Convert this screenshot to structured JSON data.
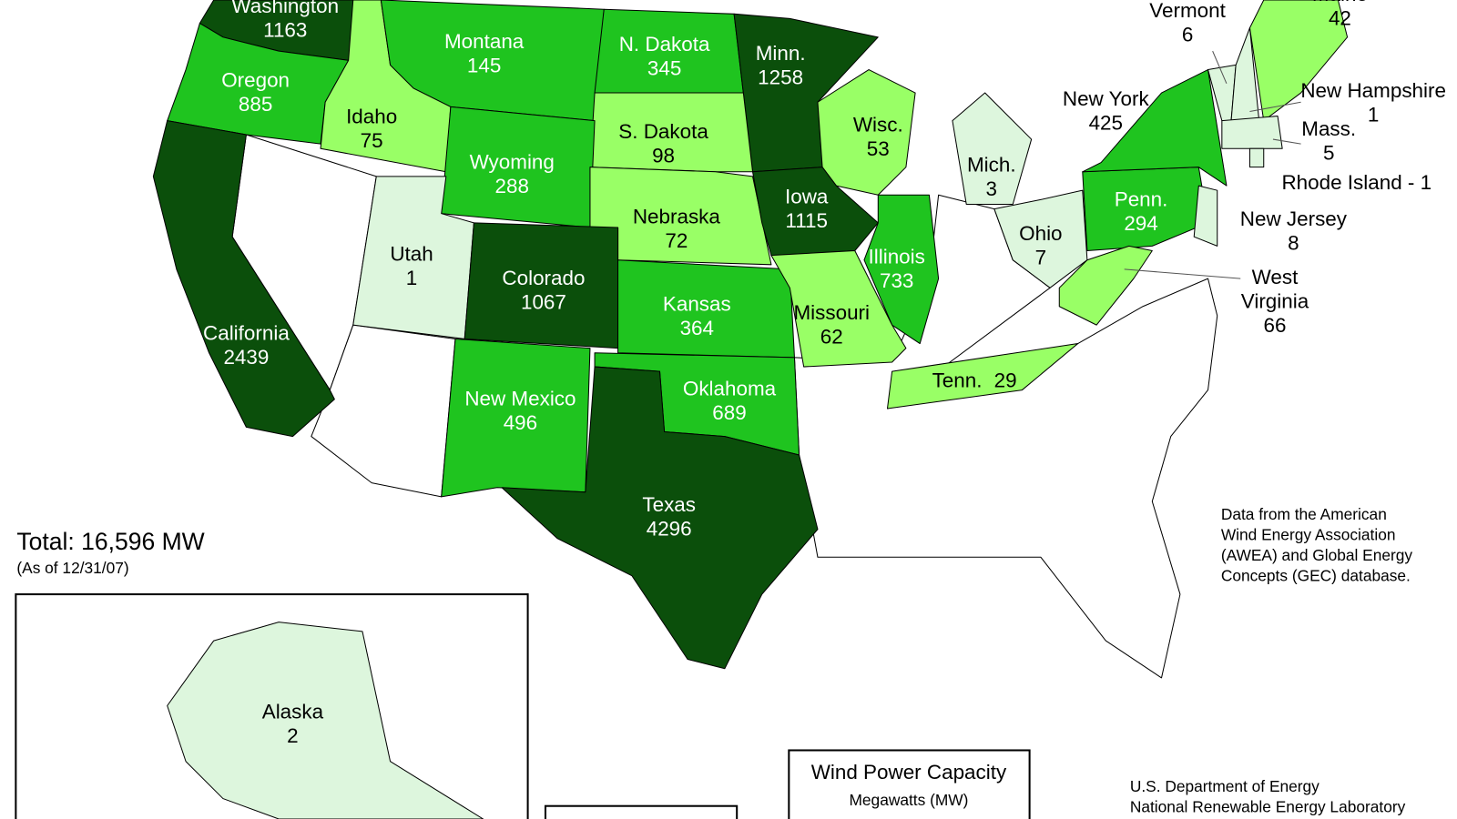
{
  "total": "Total:  16,596 MW",
  "as_of": "(As of 12/31/07)",
  "source": [
    "Data from the American",
    "Wind Energy Association",
    "(AWEA) and Global Energy",
    "Concepts (GEC) database."
  ],
  "legend": {
    "title": "Wind Power Capacity",
    "subtitle": "Megawatts (MW)"
  },
  "credit": [
    "U.S. Department of Energy",
    "National Renewable Energy Laboratory"
  ],
  "states": [
    {
      "name": "Washington",
      "value": 1163,
      "color": "#0b4f0b"
    },
    {
      "name": "Oregon",
      "value": 885,
      "color": "#1fc41f"
    },
    {
      "name": "Idaho",
      "value": 75,
      "color": "#99ff66"
    },
    {
      "name": "Montana",
      "value": 145,
      "color": "#1fc41f"
    },
    {
      "name": "N. Dakota",
      "value": 345,
      "color": "#1fc41f"
    },
    {
      "name": "Minn.",
      "value": 1258,
      "color": "#0b4f0b"
    },
    {
      "name": "S. Dakota",
      "value": 98,
      "color": "#99ff66"
    },
    {
      "name": "Wisc.",
      "value": 53,
      "color": "#99ff66"
    },
    {
      "name": "Wyoming",
      "value": 288,
      "color": "#1fc41f"
    },
    {
      "name": "Nebraska",
      "value": 72,
      "color": "#99ff66"
    },
    {
      "name": "Iowa",
      "value": 1115,
      "color": "#0b4f0b"
    },
    {
      "name": "Illinois",
      "value": 733,
      "color": "#1fc41f"
    },
    {
      "name": "Utah",
      "value": 1,
      "color": "#ddf6dd"
    },
    {
      "name": "Colorado",
      "value": 1067,
      "color": "#0b4f0b"
    },
    {
      "name": "Kansas",
      "value": 364,
      "color": "#1fc41f"
    },
    {
      "name": "Missouri",
      "value": 62,
      "color": "#99ff66"
    },
    {
      "name": "California",
      "value": 2439,
      "color": "#0b4f0b"
    },
    {
      "name": "New Mexico",
      "value": 496,
      "color": "#1fc41f"
    },
    {
      "name": "Oklahoma",
      "value": 689,
      "color": "#1fc41f"
    },
    {
      "name": "Texas",
      "value": 4296,
      "color": "#0b4f0b"
    },
    {
      "name": "Tenn.",
      "value": 29,
      "color": "#99ff66"
    },
    {
      "name": "Mich.",
      "value": 3,
      "color": "#ddf6dd"
    },
    {
      "name": "Ohio",
      "value": 7,
      "color": "#ddf6dd"
    },
    {
      "name": "Penn.",
      "value": 294,
      "color": "#1fc41f"
    },
    {
      "name": "New York",
      "value": 425,
      "color": "#1fc41f"
    },
    {
      "name": "West Virginia",
      "value": 66,
      "color": "#99ff66"
    },
    {
      "name": "Vermont",
      "value": 6,
      "color": "#ddf6dd"
    },
    {
      "name": "Maine",
      "value": 42,
      "color": "#99ff66"
    },
    {
      "name": "New Hampshire",
      "value": 1,
      "color": "#ddf6dd"
    },
    {
      "name": "Mass.",
      "value": 5,
      "color": "#ddf6dd"
    },
    {
      "name": "Rhode Island - 1",
      "color": "#ddf6dd"
    },
    {
      "name": "New Jersey",
      "value": 8,
      "color": "#ddf6dd"
    },
    {
      "name": "Alaska",
      "value": 2,
      "color": "#ddf6dd"
    }
  ]
}
